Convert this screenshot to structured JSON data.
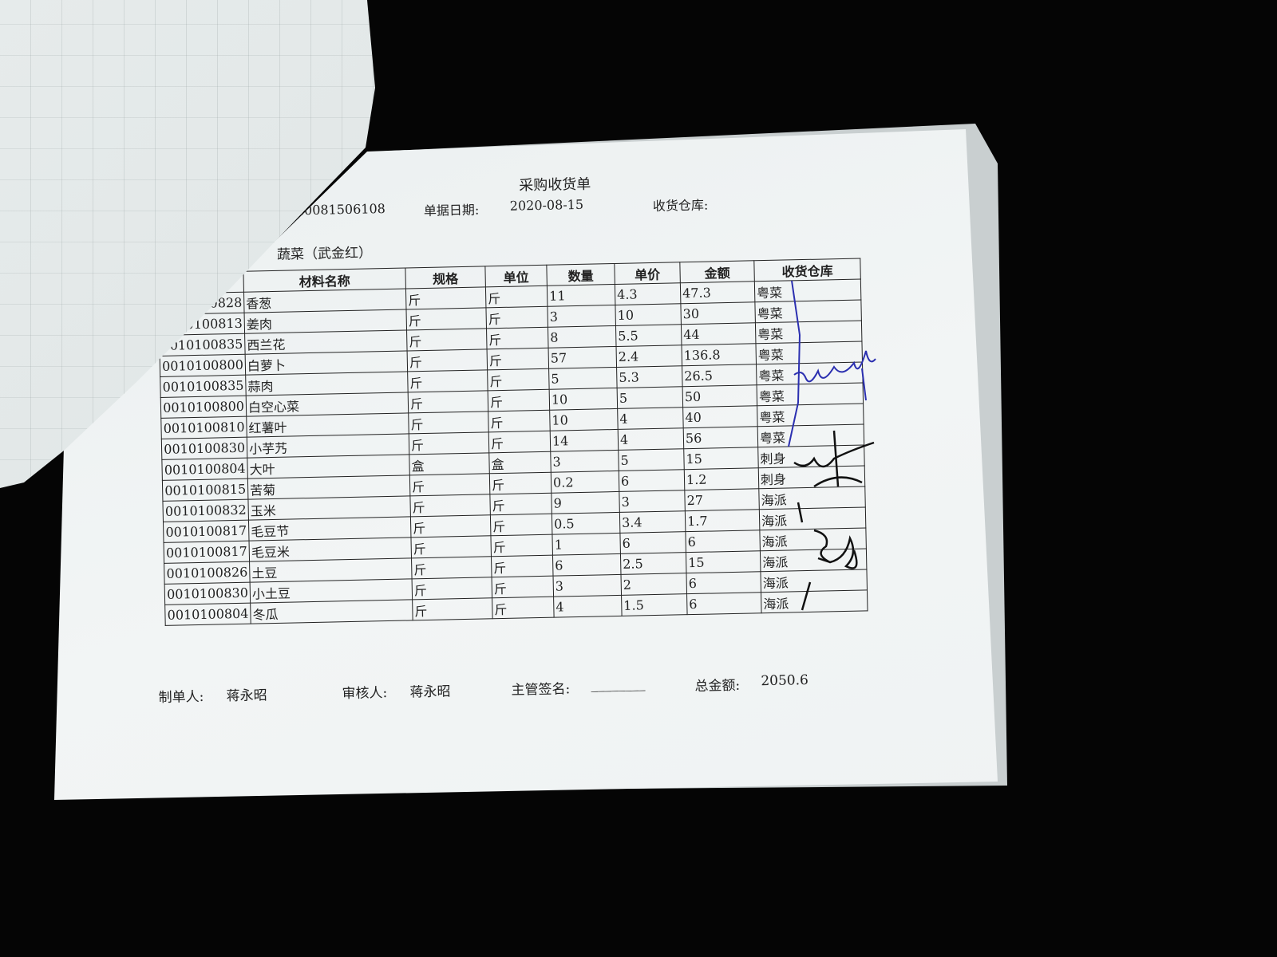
{
  "document": {
    "title": "采购收货单",
    "doc_number_label": "",
    "doc_number_visible": "20081506108",
    "date_label": "单据日期:",
    "date_value": "2020-08-15",
    "warehouse_label": "收货仓库:",
    "warehouse_value": "",
    "supplier": "蔬菜（武金红）"
  },
  "table": {
    "headers": [
      "",
      "材料名称",
      "规格",
      "单位",
      "数量",
      "单价",
      "金额",
      "收货仓库"
    ],
    "rows": [
      [
        "0828",
        "香葱",
        "斤",
        "斤",
        "11",
        "4.3",
        "47.3",
        "粤菜"
      ],
      [
        "0100813",
        "姜肉",
        "斤",
        "斤",
        "3",
        "10",
        "30",
        "粤菜"
      ],
      [
        "0010100835",
        "西兰花",
        "斤",
        "斤",
        "8",
        "5.5",
        "44",
        "粤菜"
      ],
      [
        "0010100800",
        "白萝卜",
        "斤",
        "斤",
        "57",
        "2.4",
        "136.8",
        "粤菜"
      ],
      [
        "0010100835",
        "蒜肉",
        "斤",
        "斤",
        "5",
        "5.3",
        "26.5",
        "粤菜"
      ],
      [
        "0010100800",
        "白空心菜",
        "斤",
        "斤",
        "10",
        "5",
        "50",
        "粤菜"
      ],
      [
        "0010100810",
        "红薯叶",
        "斤",
        "斤",
        "10",
        "4",
        "40",
        "粤菜"
      ],
      [
        "0010100830",
        "小芋艿",
        "斤",
        "斤",
        "14",
        "4",
        "56",
        "粤菜"
      ],
      [
        "0010100804",
        "大叶",
        "盒",
        "盒",
        "3",
        "5",
        "15",
        "刺身"
      ],
      [
        "0010100815",
        "苦菊",
        "斤",
        "斤",
        "0.2",
        "6",
        "1.2",
        "刺身"
      ],
      [
        "0010100832",
        "玉米",
        "斤",
        "斤",
        "9",
        "3",
        "27",
        "海派"
      ],
      [
        "0010100817",
        "毛豆节",
        "斤",
        "斤",
        "0.5",
        "3.4",
        "1.7",
        "海派"
      ],
      [
        "0010100817",
        "毛豆米",
        "斤",
        "斤",
        "1",
        "6",
        "6",
        "海派"
      ],
      [
        "0010100826",
        "土豆",
        "斤",
        "斤",
        "6",
        "2.5",
        "15",
        "海派"
      ],
      [
        "0010100830",
        "小土豆",
        "斤",
        "斤",
        "3",
        "2",
        "6",
        "海派"
      ],
      [
        "0010100804",
        "冬瓜",
        "斤",
        "斤",
        "4",
        "1.5",
        "6",
        "海派"
      ]
    ]
  },
  "footer": {
    "maker_label": "制单人:",
    "maker": "蒋永昭",
    "reviewer_label": "审核人:",
    "reviewer": "蒋永昭",
    "supervisor_label": "主管签名:",
    "supervisor_blank": "________",
    "total_label": "总金额:",
    "total": "2050.6"
  },
  "colors": {
    "background": "#050505",
    "paper": "#eef1f2",
    "ink": "#222222",
    "signature_blue": "#2b2fb0"
  }
}
